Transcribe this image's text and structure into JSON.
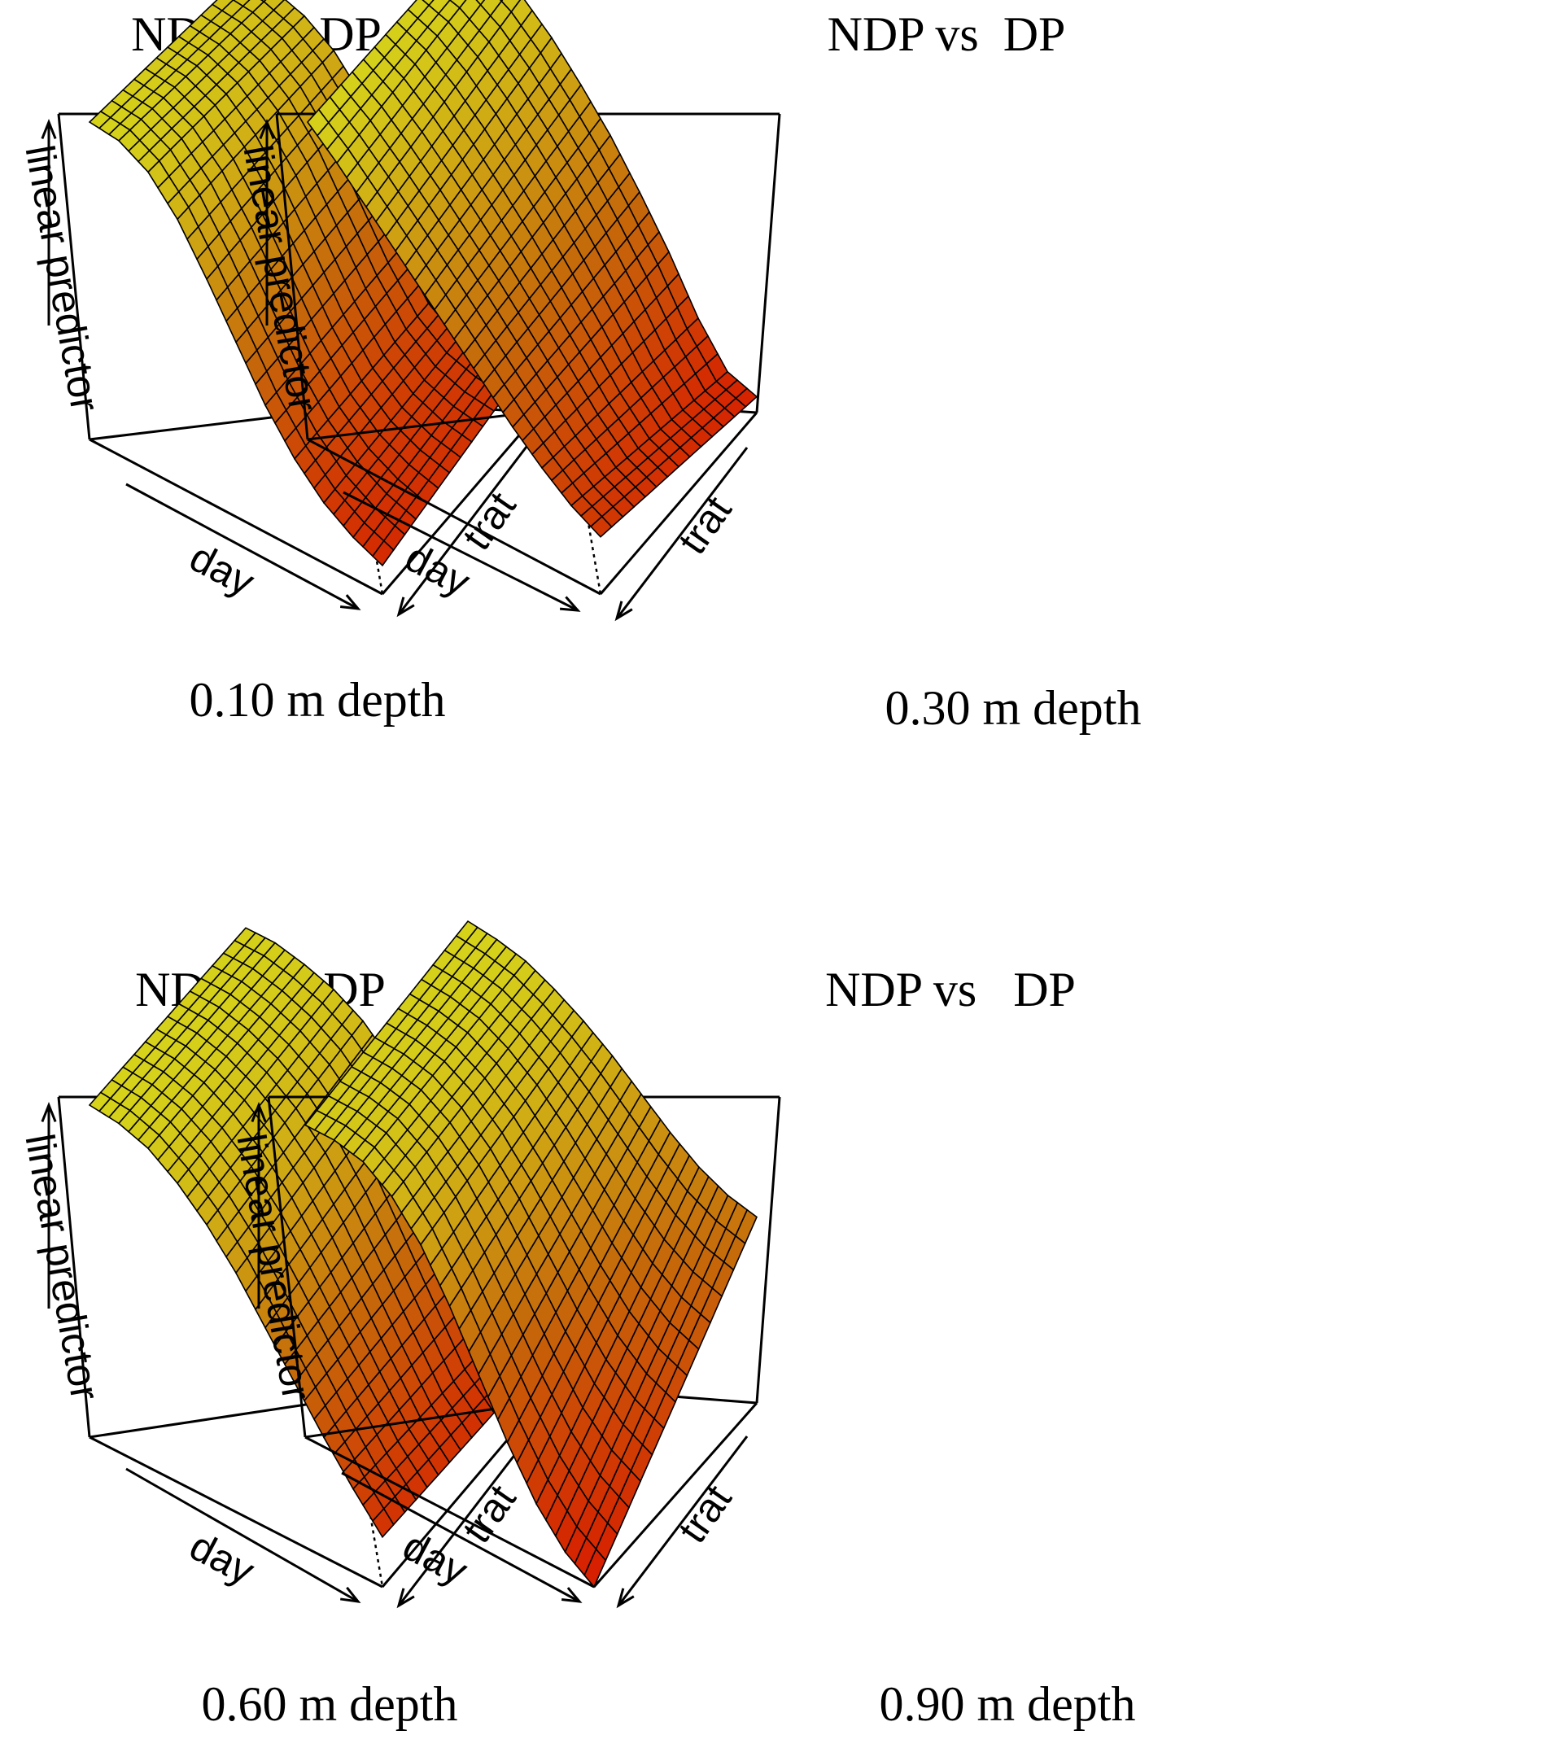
{
  "colors": {
    "surface_low": "#d81b00",
    "surface_mid": "#c56a0a",
    "surface_high": "#d6d31a",
    "mesh": "#000000",
    "background": "#ffffff"
  },
  "chart_data": [
    {
      "type": "surface3d",
      "title": "NDP vs   DP",
      "caption": "0.10 m depth",
      "xlabel": "day",
      "ylabel": "trat",
      "zlabel": "linear predictor",
      "z_relative_by_trat_level": {
        "trat_low": [
          1.0,
          0.99,
          0.94,
          0.84,
          0.7,
          0.55,
          0.4,
          0.28,
          0.19,
          0.13,
          0.09
        ],
        "trat_high": [
          0.9,
          0.89,
          0.86,
          0.8,
          0.7,
          0.55,
          0.4,
          0.28,
          0.22,
          0.2,
          0.2
        ]
      }
    },
    {
      "type": "surface3d",
      "title": "NDP vs  DP",
      "caption": "0.30 m depth",
      "xlabel": "day",
      "ylabel": "trat",
      "zlabel": "linear predictor",
      "z_relative_by_trat_level": {
        "trat_low": [
          1.0,
          0.92,
          0.83,
          0.74,
          0.65,
          0.56,
          0.47,
          0.38,
          0.3,
          0.23,
          0.18
        ],
        "trat_high": [
          0.98,
          0.97,
          0.92,
          0.84,
          0.74,
          0.63,
          0.5,
          0.36,
          0.2,
          0.08,
          0.05
        ]
      }
    },
    {
      "type": "surface3d",
      "title": "NDP vs   DP",
      "caption": "0.60 m depth",
      "xlabel": "day",
      "ylabel": "trat",
      "zlabel": "linear predictor",
      "z_relative_by_trat_level": {
        "trat_low": [
          1.0,
          0.99,
          0.96,
          0.9,
          0.82,
          0.72,
          0.6,
          0.48,
          0.36,
          0.25,
          0.15
        ],
        "trat_high": [
          0.98,
          0.98,
          0.96,
          0.93,
          0.88,
          0.8,
          0.68,
          0.52,
          0.36,
          0.2,
          0.12
        ]
      }
    },
    {
      "type": "surface3d",
      "title": "NDP vs   DP",
      "caption": "0.90 m depth",
      "xlabel": "day",
      "ylabel": "trat",
      "zlabel": "linear predictor",
      "z_relative_by_trat_level": {
        "trat_low": [
          0.94,
          0.94,
          0.92,
          0.86,
          0.76,
          0.62,
          0.46,
          0.3,
          0.16,
          0.06,
          0.0
        ],
        "trat_high": [
          1.0,
          0.99,
          0.97,
          0.93,
          0.88,
          0.82,
          0.75,
          0.68,
          0.62,
          0.58,
          0.56
        ]
      }
    }
  ]
}
